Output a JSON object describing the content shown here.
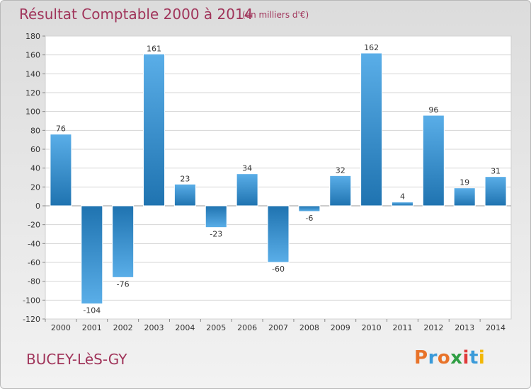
{
  "header": {
    "title": "Résultat Comptable 2000 à 2014",
    "subtitle": "(en milliers d'€)"
  },
  "footer": {
    "place": "BUCEY-LèS-GY",
    "logo_text": "Proxiti",
    "logo_colors": [
      "#e8732a",
      "#3a9ad9",
      "#e8732a",
      "#2f9e44",
      "#e03a3a",
      "#3a9ad9",
      "#f2b705"
    ]
  },
  "chart_data": {
    "type": "bar",
    "categories": [
      "2000",
      "2001",
      "2002",
      "2003",
      "2004",
      "2005",
      "2006",
      "2007",
      "2008",
      "2009",
      "2010",
      "2011",
      "2012",
      "2013",
      "2014"
    ],
    "values": [
      76,
      -104,
      -76,
      161,
      23,
      -23,
      34,
      -60,
      -6,
      32,
      162,
      4,
      96,
      19,
      31
    ],
    "ylim": [
      -120,
      180
    ],
    "yticks": [
      -120,
      -100,
      -80,
      -60,
      -40,
      -20,
      0,
      20,
      40,
      60,
      80,
      100,
      120,
      140,
      160,
      180
    ],
    "grid": true,
    "bar_color_top": "#5aaee8",
    "bar_color_bottom": "#1f73b0"
  }
}
